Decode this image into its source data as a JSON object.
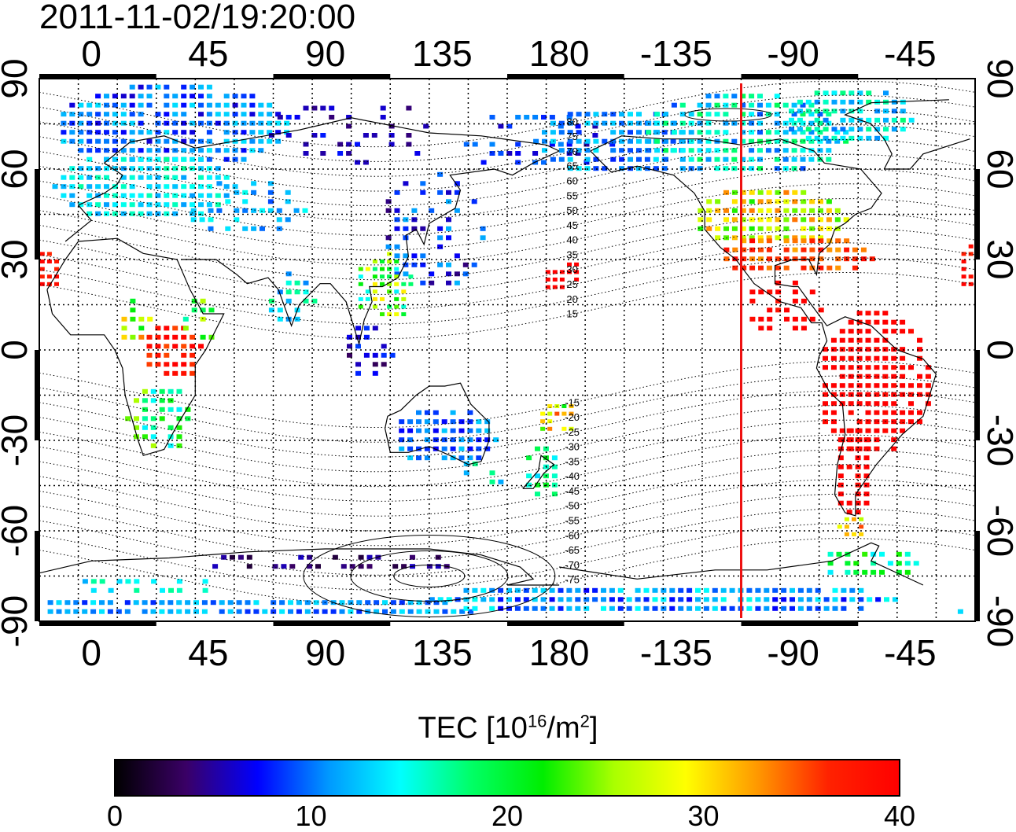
{
  "header": {
    "timestamp": "2011-11-02/19:20:00"
  },
  "map": {
    "top_lon_labels": [
      "0",
      "45",
      "90",
      "135",
      "180",
      "-135",
      "-90",
      "-45"
    ],
    "bottom_lon_labels": [
      "0",
      "45",
      "90",
      "135",
      "180",
      "-135",
      "-90",
      "-45"
    ],
    "left_lat_labels": [
      "90",
      "60",
      "30",
      "0",
      "-30",
      "-60",
      "-90"
    ],
    "right_lat_labels": [
      "90",
      "60",
      "30",
      "0",
      "-30",
      "-60",
      "-90"
    ],
    "lon_range": [
      -20,
      340
    ],
    "lat_range": [
      -90,
      90
    ],
    "grid": "dotted",
    "magnetic_lat_labels": [
      "80",
      "75",
      "70",
      "65",
      "60",
      "55",
      "50",
      "45",
      "40",
      "35",
      "30",
      "25",
      "20",
      "15",
      "-15",
      "-20",
      "-25",
      "-30",
      "-35",
      "-40",
      "-45",
      "-50",
      "-55",
      "-60",
      "-65",
      "-70",
      "-75"
    ],
    "sun_meridian_lon": -110,
    "sun_meridian_color": "#ee1111"
  },
  "colorbar": {
    "title_prefix": "TEC  [10",
    "title_exp1": "16",
    "title_mid": "/m",
    "title_exp2": "2",
    "title_suffix": "]",
    "min": 0,
    "max": 40,
    "tick_labels": [
      "0",
      "10",
      "20",
      "30",
      "40"
    ],
    "colors": [
      "#000000",
      "#3a0066",
      "#0000ff",
      "#0099ff",
      "#00ffff",
      "#00ff66",
      "#00ee00",
      "#aaff00",
      "#ffff00",
      "#ff9900",
      "#ff2200",
      "#ff0000"
    ]
  }
}
